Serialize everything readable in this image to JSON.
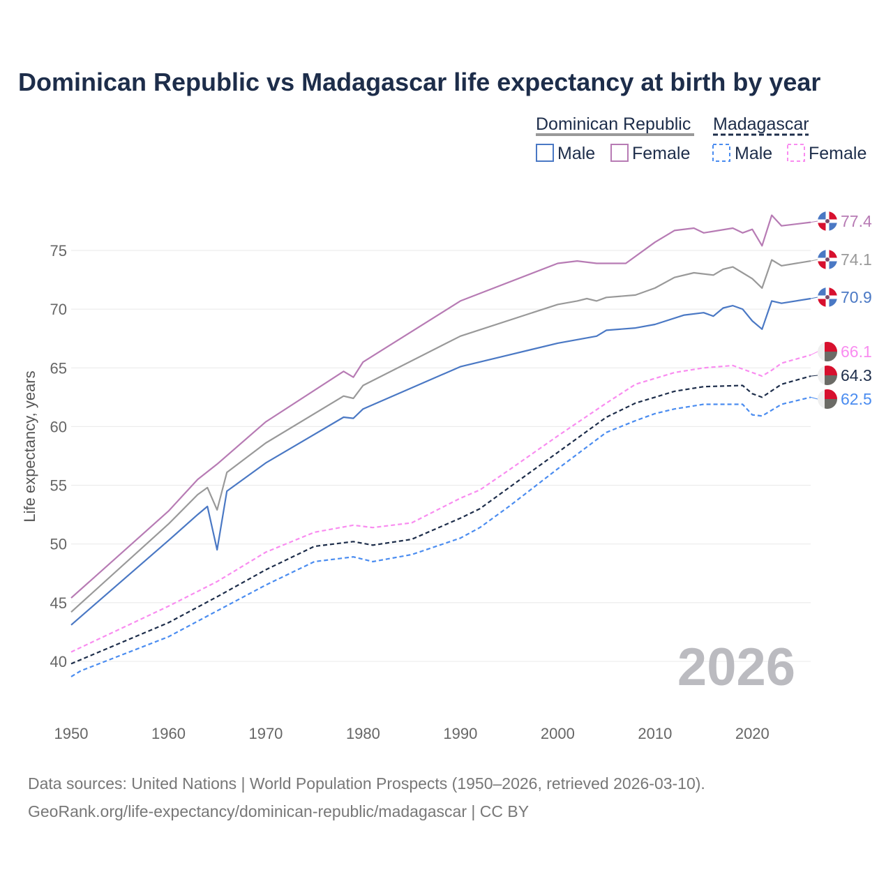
{
  "chart_data": {
    "type": "line",
    "title": "Dominican Republic vs Madagascar life expectancy at birth by year",
    "xlabel": "",
    "ylabel": "Life expectancy, years",
    "xlim": [
      1950,
      2026
    ],
    "ylim": [
      36,
      80
    ],
    "x_ticks": [
      "1950",
      "1960",
      "1970",
      "1980",
      "1990",
      "2000",
      "2010",
      "2020"
    ],
    "y_ticks": [
      "40",
      "45",
      "50",
      "55",
      "60",
      "65",
      "70",
      "75"
    ],
    "grid": true,
    "legend": {
      "placement": "top-right",
      "groups": [
        {
          "name": "Dominican Republic",
          "items": [
            "Male",
            "Female"
          ]
        },
        {
          "name": "Madagascar",
          "items": [
            "Male",
            "Female"
          ]
        }
      ]
    },
    "year_label": "2026",
    "series": [
      {
        "name": "Dominican Republic Female",
        "color": "#b77bb4",
        "dash": false,
        "flag": "dr",
        "end_label": "77.4",
        "points": [
          [
            1950,
            45.4
          ],
          [
            1960,
            52.8
          ],
          [
            1963,
            55.5
          ],
          [
            1965,
            56.8
          ],
          [
            1970,
            60.4
          ],
          [
            1978,
            64.7
          ],
          [
            1979,
            64.2
          ],
          [
            1980,
            65.5
          ],
          [
            1990,
            70.7
          ],
          [
            2000,
            73.9
          ],
          [
            2002,
            74.1
          ],
          [
            2004,
            73.9
          ],
          [
            2007,
            73.9
          ],
          [
            2010,
            75.7
          ],
          [
            2012,
            76.7
          ],
          [
            2014,
            76.9
          ],
          [
            2015,
            76.5
          ],
          [
            2018,
            76.9
          ],
          [
            2019,
            76.5
          ],
          [
            2020,
            76.8
          ],
          [
            2021,
            75.4
          ],
          [
            2022,
            78.0
          ],
          [
            2023,
            77.1
          ],
          [
            2025,
            77.3
          ],
          [
            2026,
            77.4
          ]
        ]
      },
      {
        "name": "Dominican Republic Total",
        "color": "#999999",
        "dash": false,
        "flag": "dr",
        "end_label": "74.1",
        "points": [
          [
            1950,
            44.2
          ],
          [
            1960,
            51.7
          ],
          [
            1963,
            54.2
          ],
          [
            1964,
            54.8
          ],
          [
            1965,
            52.9
          ],
          [
            1966,
            56.1
          ],
          [
            1970,
            58.6
          ],
          [
            1978,
            62.6
          ],
          [
            1979,
            62.4
          ],
          [
            1980,
            63.5
          ],
          [
            1990,
            67.7
          ],
          [
            2000,
            70.4
          ],
          [
            2002,
            70.7
          ],
          [
            2003,
            70.9
          ],
          [
            2004,
            70.7
          ],
          [
            2005,
            71.0
          ],
          [
            2008,
            71.2
          ],
          [
            2010,
            71.8
          ],
          [
            2012,
            72.7
          ],
          [
            2014,
            73.1
          ],
          [
            2016,
            72.9
          ],
          [
            2017,
            73.4
          ],
          [
            2018,
            73.6
          ],
          [
            2019,
            73.1
          ],
          [
            2020,
            72.6
          ],
          [
            2021,
            71.8
          ],
          [
            2022,
            74.2
          ],
          [
            2023,
            73.7
          ],
          [
            2026,
            74.1
          ]
        ]
      },
      {
        "name": "Dominican Republic Male",
        "color": "#4a78c4",
        "dash": false,
        "flag": "dr",
        "end_label": "70.9",
        "points": [
          [
            1950,
            43.1
          ],
          [
            1960,
            50.3
          ],
          [
            1963,
            52.5
          ],
          [
            1964,
            53.2
          ],
          [
            1965,
            49.5
          ],
          [
            1966,
            54.5
          ],
          [
            1970,
            56.9
          ],
          [
            1978,
            60.8
          ],
          [
            1979,
            60.7
          ],
          [
            1980,
            61.5
          ],
          [
            1990,
            65.1
          ],
          [
            2000,
            67.1
          ],
          [
            2004,
            67.7
          ],
          [
            2005,
            68.2
          ],
          [
            2008,
            68.4
          ],
          [
            2010,
            68.7
          ],
          [
            2013,
            69.5
          ],
          [
            2015,
            69.7
          ],
          [
            2016,
            69.4
          ],
          [
            2017,
            70.1
          ],
          [
            2018,
            70.3
          ],
          [
            2019,
            70.0
          ],
          [
            2020,
            69.0
          ],
          [
            2021,
            68.3
          ],
          [
            2022,
            70.7
          ],
          [
            2023,
            70.5
          ],
          [
            2026,
            70.9
          ]
        ]
      },
      {
        "name": "Madagascar Female",
        "color": "#f98cf0",
        "dash": true,
        "flag": "mg",
        "end_label": "66.1",
        "points": [
          [
            1950,
            40.8
          ],
          [
            1960,
            44.7
          ],
          [
            1965,
            46.8
          ],
          [
            1970,
            49.3
          ],
          [
            1975,
            51.0
          ],
          [
            1979,
            51.6
          ],
          [
            1981,
            51.4
          ],
          [
            1985,
            51.8
          ],
          [
            1990,
            53.9
          ],
          [
            1992,
            54.6
          ],
          [
            1995,
            56.3
          ],
          [
            2000,
            59.2
          ],
          [
            2005,
            62.0
          ],
          [
            2008,
            63.6
          ],
          [
            2010,
            64.1
          ],
          [
            2012,
            64.6
          ],
          [
            2015,
            65.0
          ],
          [
            2018,
            65.2
          ],
          [
            2020,
            64.6
          ],
          [
            2021,
            64.3
          ],
          [
            2022,
            64.8
          ],
          [
            2023,
            65.4
          ],
          [
            2026,
            66.1
          ]
        ]
      },
      {
        "name": "Madagascar Total",
        "color": "#1d2d4a",
        "dash": true,
        "flag": "mg",
        "end_label": "64.3",
        "points": [
          [
            1950,
            39.8
          ],
          [
            1960,
            43.3
          ],
          [
            1965,
            45.5
          ],
          [
            1970,
            47.8
          ],
          [
            1975,
            49.8
          ],
          [
            1979,
            50.2
          ],
          [
            1981,
            49.9
          ],
          [
            1985,
            50.4
          ],
          [
            1990,
            52.2
          ],
          [
            1992,
            53.0
          ],
          [
            1995,
            54.8
          ],
          [
            2000,
            57.8
          ],
          [
            2005,
            60.8
          ],
          [
            2008,
            62.0
          ],
          [
            2010,
            62.5
          ],
          [
            2012,
            63.0
          ],
          [
            2015,
            63.4
          ],
          [
            2019,
            63.5
          ],
          [
            2020,
            62.8
          ],
          [
            2021,
            62.5
          ],
          [
            2023,
            63.6
          ],
          [
            2026,
            64.3
          ]
        ]
      },
      {
        "name": "Madagascar Male",
        "color": "#4a8cf0",
        "dash": true,
        "flag": "mg",
        "end_label": "62.5",
        "points": [
          [
            1950,
            38.7
          ],
          [
            1951,
            39.2
          ],
          [
            1960,
            42.1
          ],
          [
            1965,
            44.3
          ],
          [
            1970,
            46.5
          ],
          [
            1975,
            48.5
          ],
          [
            1979,
            48.9
          ],
          [
            1981,
            48.5
          ],
          [
            1985,
            49.1
          ],
          [
            1990,
            50.5
          ],
          [
            1992,
            51.4
          ],
          [
            1995,
            53.2
          ],
          [
            2000,
            56.4
          ],
          [
            2005,
            59.5
          ],
          [
            2008,
            60.5
          ],
          [
            2010,
            61.1
          ],
          [
            2012,
            61.5
          ],
          [
            2015,
            61.9
          ],
          [
            2019,
            61.9
          ],
          [
            2020,
            61.0
          ],
          [
            2021,
            60.9
          ],
          [
            2023,
            61.9
          ],
          [
            2026,
            62.5
          ]
        ]
      }
    ]
  },
  "legend": {
    "group1": "Dominican Republic",
    "group2": "Madagascar",
    "male": "Male",
    "female": "Female",
    "colors": {
      "dr": "#999999",
      "dr_male": "#4a78c4",
      "dr_female": "#b77bb4",
      "mg": "#1d2d4a",
      "mg_male": "#4a8cf0",
      "mg_female": "#f98cf0"
    }
  },
  "footer": {
    "line1": "Data sources: United Nations | World Population Prospects (1950–2026, retrieved 2026-03-10).",
    "line2": "GeoRank.org/life-expectancy/dominican-republic/madagascar | CC BY"
  }
}
